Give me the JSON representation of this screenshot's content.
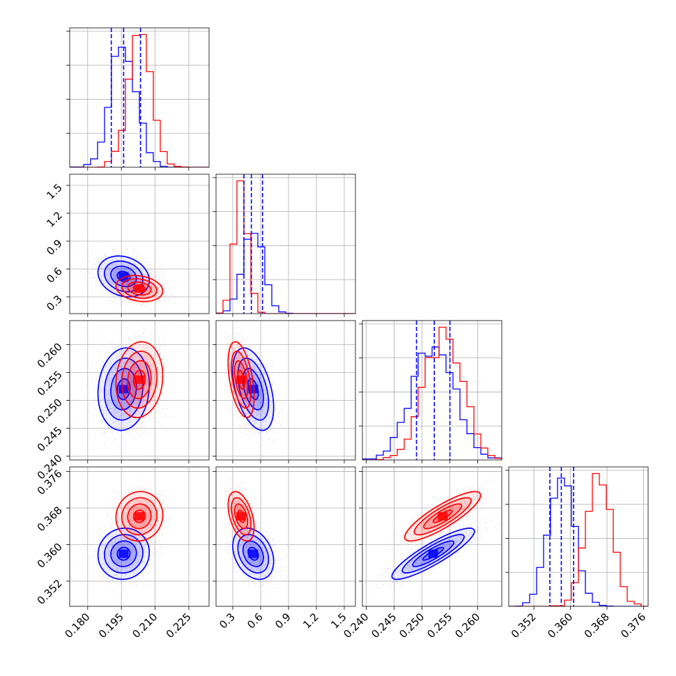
{
  "colors": {
    "series_a": "#0000ff",
    "series_b": "#ff0000",
    "grid": "#b0b0b0"
  },
  "chart_data": {
    "type": "corner-plot",
    "grid": true,
    "legend": "none",
    "parameters": [
      {
        "range": [
          0.172,
          0.234
        ],
        "ticks": [
          0.18,
          0.195,
          0.21,
          0.225
        ],
        "tick_labels": [
          "0.180",
          "0.195",
          "0.210",
          "0.225"
        ]
      },
      {
        "range": [
          0.12,
          1.62
        ],
        "ticks": [
          0.3,
          0.6,
          0.9,
          1.2,
          1.5
        ],
        "tick_labels": [
          "0.3",
          "0.6",
          "0.9",
          "1.2",
          "1.5"
        ]
      },
      {
        "range": [
          0.2393,
          0.2643
        ],
        "ticks": [
          0.24,
          0.245,
          0.25,
          0.255,
          0.26
        ],
        "tick_labels": [
          "0.240",
          "0.245",
          "0.250",
          "0.255",
          "0.260"
        ]
      },
      {
        "range": [
          0.3465,
          0.377
        ],
        "ticks": [
          0.352,
          0.36,
          0.368,
          0.376
        ],
        "tick_labels": [
          "0.352",
          "0.360",
          "0.368",
          "0.376"
        ]
      }
    ],
    "series": [
      {
        "color": "#0000ff",
        "means": [
          0.196,
          0.52,
          0.252,
          0.358
        ],
        "sds": [
          0.0057,
          0.11,
          0.0037,
          0.0028
        ],
        "quantile_lines": [
          [
            0.1905,
            0.196,
            0.2035
          ],
          [
            0.42,
            0.5,
            0.62
          ],
          [
            0.249,
            0.2522,
            0.255
          ],
          [
            0.3555,
            0.358,
            0.3607
          ]
        ],
        "correlations": {
          "0-1": -0.2,
          "0-2": 0.1,
          "0-3": 0.05,
          "1-2": -0.45,
          "1-3": -0.3,
          "2-3": 0.88
        }
      },
      {
        "color": "#ff0000",
        "means": [
          0.203,
          0.39,
          0.2537,
          0.3662
        ],
        "sds": [
          0.0052,
          0.07,
          0.0034,
          0.0027
        ],
        "quantile_lines": [],
        "correlations": {
          "0-1": -0.2,
          "0-2": 0.1,
          "0-3": 0.05,
          "1-2": -0.45,
          "1-3": -0.45,
          "2-3": 0.85
        }
      }
    ]
  }
}
